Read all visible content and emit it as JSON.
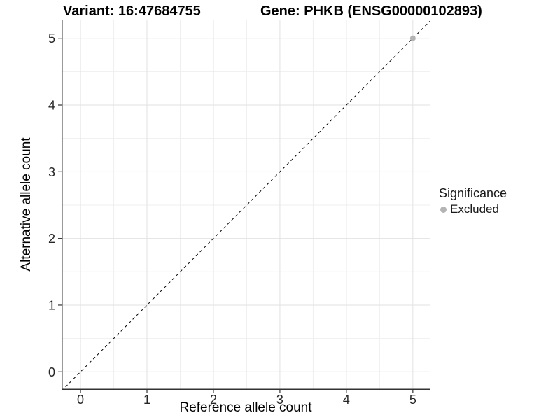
{
  "titles": {
    "variant": "Variant: 16:47684755",
    "gene": "Gene: PHKB (ENSG00000102893)"
  },
  "chart_data": {
    "type": "scatter",
    "title_left": "Variant: 16:47684755",
    "title_right": "Gene: PHKB (ENSG00000102893)",
    "xlabel": "Reference allele count",
    "ylabel": "Alternative allele count",
    "xlim": [
      -0.285,
      5.265
    ],
    "ylim": [
      -0.27,
      5.28
    ],
    "xticks": [
      0,
      1,
      2,
      3,
      4,
      5
    ],
    "yticks": [
      0,
      1,
      2,
      3,
      4,
      5
    ],
    "x_minor_ticks": [
      0.5,
      1.5,
      2.5,
      3.5,
      4.5
    ],
    "y_minor_ticks": [
      0.5,
      1.5,
      2.5,
      3.5,
      4.5
    ],
    "grid": true,
    "reference_line": {
      "type": "abline",
      "slope": 1,
      "intercept": 0,
      "style": "dashed",
      "color": "#000000"
    },
    "series": [
      {
        "name": "Excluded",
        "color": "#b4b4b4",
        "points": [
          {
            "x": 5,
            "y": 5
          }
        ]
      }
    ],
    "legend": {
      "title": "Significance",
      "position": "right",
      "items": [
        {
          "label": "Excluded",
          "color": "#b4b4b4"
        }
      ]
    },
    "style": {
      "panel_background": "#ffffff",
      "grid_major_color": "#e2e2e2",
      "grid_minor_color": "#efefef",
      "axis_line_color": "#333333",
      "tick_color": "#333333",
      "tick_label_color": "#262626",
      "point_radius": 4
    }
  }
}
